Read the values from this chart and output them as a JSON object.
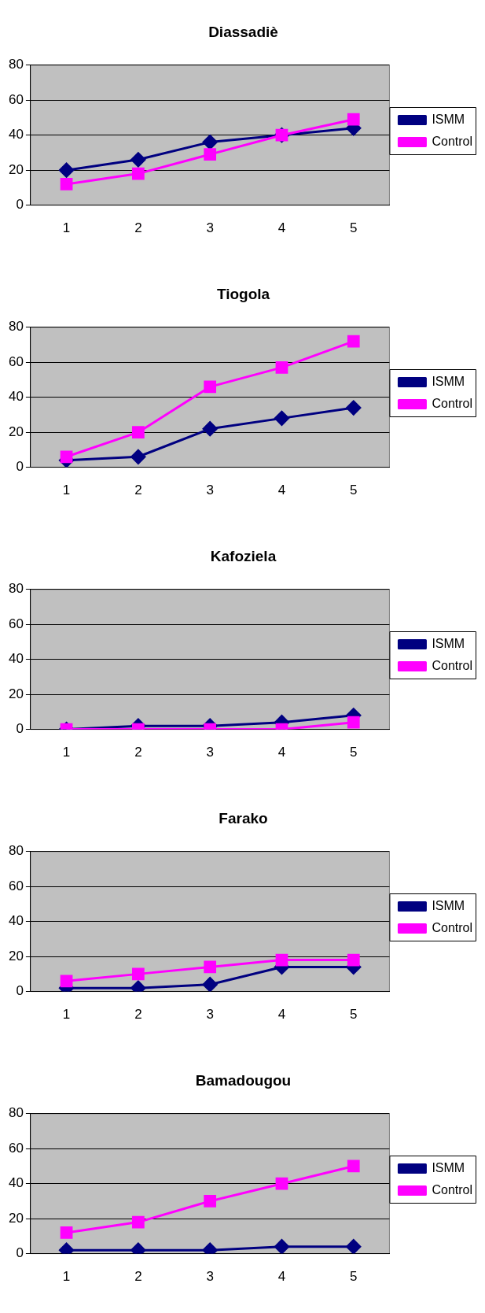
{
  "chart_data": [
    {
      "type": "line",
      "title": "Diassadiè",
      "categories": [
        "1",
        "2",
        "3",
        "4",
        "5"
      ],
      "ylim": [
        0,
        80
      ],
      "yticks": [
        0,
        20,
        40,
        60,
        80
      ],
      "grid": "y",
      "legend": "right",
      "series": [
        {
          "name": "ISMM",
          "color": "#000080",
          "marker": "diamond",
          "values": [
            20,
            26,
            36,
            40,
            44
          ]
        },
        {
          "name": "Control",
          "color": "#ff00ff",
          "marker": "square",
          "values": [
            12,
            18,
            29,
            40,
            49
          ]
        }
      ]
    },
    {
      "type": "line",
      "title": "Tiogola",
      "categories": [
        "1",
        "2",
        "3",
        "4",
        "5"
      ],
      "ylim": [
        0,
        80
      ],
      "yticks": [
        0,
        20,
        40,
        60,
        80
      ],
      "grid": "y",
      "legend": "right",
      "series": [
        {
          "name": "ISMM",
          "color": "#000080",
          "marker": "diamond",
          "values": [
            4,
            6,
            22,
            28,
            34
          ]
        },
        {
          "name": "Control",
          "color": "#ff00ff",
          "marker": "square",
          "values": [
            6,
            20,
            46,
            57,
            72
          ]
        }
      ]
    },
    {
      "type": "line",
      "title": "Kafoziela",
      "categories": [
        "1",
        "2",
        "3",
        "4",
        "5"
      ],
      "ylim": [
        0,
        80
      ],
      "yticks": [
        0,
        20,
        40,
        60,
        80
      ],
      "grid": "y",
      "legend": "right",
      "series": [
        {
          "name": "ISMM",
          "color": "#000080",
          "marker": "diamond",
          "values": [
            0,
            2,
            2,
            4,
            8
          ]
        },
        {
          "name": "Control",
          "color": "#ff00ff",
          "marker": "square",
          "values": [
            0,
            0,
            0,
            0,
            4
          ]
        }
      ]
    },
    {
      "type": "line",
      "title": "Farako",
      "categories": [
        "1",
        "2",
        "3",
        "4",
        "5"
      ],
      "ylim": [
        0,
        80
      ],
      "yticks": [
        0,
        20,
        40,
        60,
        80
      ],
      "grid": "y",
      "legend": "right",
      "series": [
        {
          "name": "ISMM",
          "color": "#000080",
          "marker": "diamond",
          "values": [
            2,
            2,
            4,
            14,
            14
          ]
        },
        {
          "name": "Control",
          "color": "#ff00ff",
          "marker": "square",
          "values": [
            6,
            10,
            14,
            18,
            18
          ]
        }
      ]
    },
    {
      "type": "line",
      "title": "Bamadougou",
      "categories": [
        "1",
        "2",
        "3",
        "4",
        "5"
      ],
      "ylim": [
        0,
        80
      ],
      "yticks": [
        0,
        20,
        40,
        60,
        80
      ],
      "grid": "y",
      "legend": "right",
      "series": [
        {
          "name": "ISMM",
          "color": "#000080",
          "marker": "diamond",
          "values": [
            2,
            2,
            2,
            4,
            4
          ]
        },
        {
          "name": "Control",
          "color": "#ff00ff",
          "marker": "square",
          "values": [
            12,
            18,
            30,
            40,
            50
          ]
        }
      ]
    }
  ]
}
